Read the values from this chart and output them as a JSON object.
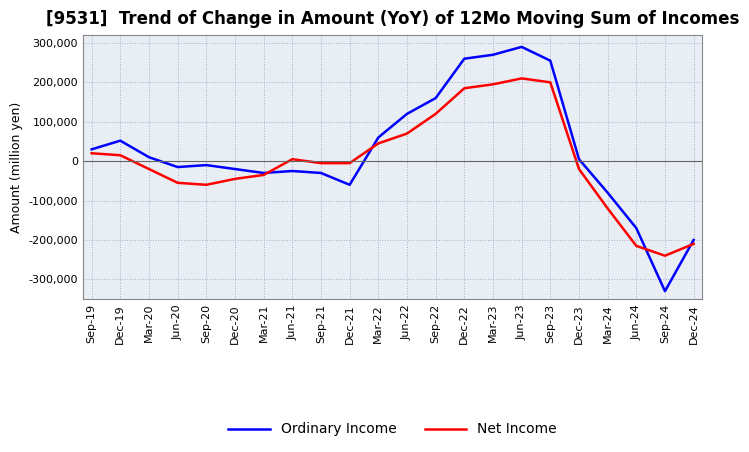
{
  "title": "[9531]  Trend of Change in Amount (YoY) of 12Mo Moving Sum of Incomes",
  "ylabel": "Amount (million yen)",
  "x_labels": [
    "Sep-19",
    "Dec-19",
    "Mar-20",
    "Jun-20",
    "Sep-20",
    "Dec-20",
    "Mar-21",
    "Jun-21",
    "Sep-21",
    "Dec-21",
    "Mar-22",
    "Jun-22",
    "Sep-22",
    "Dec-22",
    "Mar-23",
    "Jun-23",
    "Sep-23",
    "Dec-23",
    "Mar-24",
    "Jun-24",
    "Sep-24",
    "Dec-24"
  ],
  "ordinary_income": [
    30000,
    52000,
    10000,
    -15000,
    -10000,
    -20000,
    -30000,
    -25000,
    -30000,
    -60000,
    60000,
    120000,
    160000,
    260000,
    270000,
    290000,
    255000,
    5000,
    -80000,
    -170000,
    -330000,
    -200000
  ],
  "net_income": [
    20000,
    15000,
    -20000,
    -55000,
    -60000,
    -45000,
    -35000,
    5000,
    -5000,
    -5000,
    45000,
    70000,
    120000,
    185000,
    195000,
    210000,
    200000,
    -20000,
    -120000,
    -215000,
    -240000,
    -210000
  ],
  "ordinary_color": "#0000FF",
  "net_color": "#FF0000",
  "ylim": [
    -350000,
    320000
  ],
  "yticks": [
    -300000,
    -200000,
    -100000,
    0,
    100000,
    200000,
    300000
  ],
  "plot_bg_color": "#E8EEF4",
  "background_color": "#FFFFFF",
  "grid_color": "#AAAACC",
  "title_fontsize": 12,
  "axis_fontsize": 9,
  "tick_fontsize": 8
}
